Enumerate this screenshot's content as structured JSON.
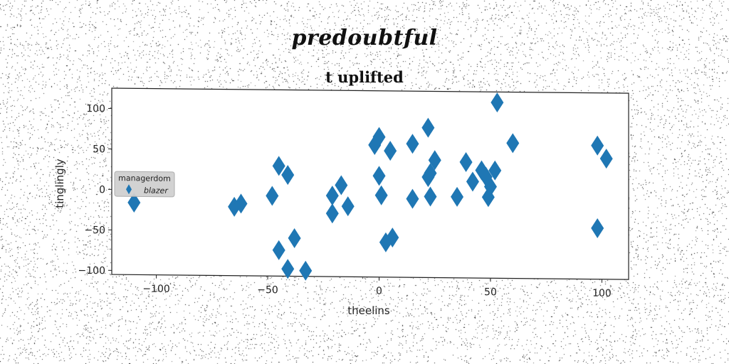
{
  "suptitle": "predoubtful",
  "chart_data": {
    "type": "scatter",
    "title": "t uplifted",
    "xlabel": "theelins",
    "ylabel": "tinglingly",
    "xlim": [
      -120,
      112
    ],
    "ylim": [
      -105,
      125
    ],
    "xticks": [
      -100,
      -50,
      0,
      50,
      100
    ],
    "yticks": [
      -100,
      -50,
      0,
      50,
      100
    ],
    "xtick_labels": [
      "−100",
      "−50",
      "0",
      "50",
      "100"
    ],
    "ytick_labels": [
      "−100",
      "−50",
      "0",
      "50",
      "100"
    ],
    "grid": false,
    "legend": {
      "title": "managerdom",
      "position": "center-left"
    },
    "series": [
      {
        "name": "blazer",
        "color": "#1f77b4",
        "marker": "diamond",
        "x": [
          -110,
          -65,
          -62,
          -48,
          -45,
          -41,
          -45,
          -38,
          -41,
          -33,
          -21,
          -21,
          -17,
          -14,
          0,
          -2,
          0,
          1,
          3,
          5,
          6,
          15,
          15,
          22,
          23,
          22,
          23,
          25,
          35,
          39,
          42,
          46,
          48,
          50,
          49,
          52,
          53,
          60,
          98,
          102,
          98
        ],
        "y": [
          -16,
          -20,
          -16,
          -6,
          31,
          20,
          -73,
          -58,
          -96,
          -98,
          -5,
          -27,
          8,
          -18,
          68,
          58,
          20,
          -4,
          -62,
          51,
          -56,
          60,
          -8,
          80,
          24,
          19,
          -5,
          40,
          -5,
          38,
          14,
          28,
          20,
          8,
          -5,
          28,
          112,
          62,
          60,
          44,
          -42
        ]
      }
    ]
  }
}
